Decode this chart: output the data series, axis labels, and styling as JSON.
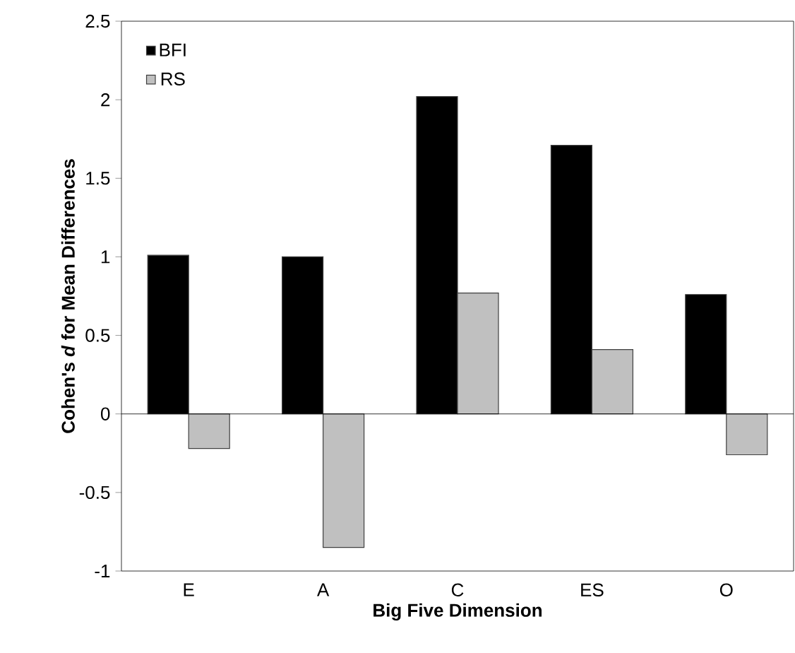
{
  "chart_data": {
    "type": "bar",
    "xlabel": "Big Five Dimension",
    "ylabel": "Cohen's *d* for Mean Differences",
    "categories": [
      "E",
      "A",
      "C",
      "ES",
      "O"
    ],
    "series": [
      {
        "name": "BFI",
        "color": "#000000",
        "values": [
          1.01,
          1.0,
          2.02,
          1.71,
          0.76
        ]
      },
      {
        "name": "RS",
        "color": "#c0c0c0",
        "values": [
          -0.22,
          -0.85,
          0.77,
          0.41,
          -0.26
        ]
      }
    ],
    "ylim": [
      -1,
      2.5
    ],
    "yticks": [
      -1,
      -0.5,
      0,
      0.5,
      1,
      1.5,
      2,
      2.5
    ],
    "legend": "top left"
  }
}
